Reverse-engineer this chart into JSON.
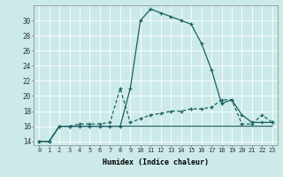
{
  "xlabel": "Humidex (Indice chaleur)",
  "background_color": "#cceaea",
  "grid_color": "#b8d8d8",
  "line_color": "#1a6060",
  "xlim": [
    -0.5,
    23.5
  ],
  "ylim": [
    13.5,
    32.0
  ],
  "yticks": [
    14,
    16,
    18,
    20,
    22,
    24,
    26,
    28,
    30
  ],
  "xticks": [
    0,
    1,
    2,
    3,
    4,
    5,
    6,
    7,
    8,
    9,
    10,
    11,
    12,
    13,
    14,
    15,
    16,
    17,
    18,
    19,
    20,
    21,
    22,
    23
  ],
  "xtick_labels": [
    "0",
    "1",
    "2",
    "3",
    "4",
    "5",
    "6",
    "7",
    "8",
    "9",
    "10",
    "11",
    "12",
    "13",
    "14",
    "15",
    "16",
    "17",
    "18",
    "19",
    "20",
    "21",
    "22",
    "23"
  ],
  "curve1_x": [
    0,
    1,
    2,
    3,
    4,
    5,
    6,
    7,
    8,
    9,
    10,
    11,
    12,
    13,
    14,
    15,
    16,
    17,
    18,
    19,
    20,
    21,
    22,
    23
  ],
  "curve1_y": [
    14,
    14,
    16,
    16,
    16,
    16,
    16,
    16,
    16,
    21,
    30,
    31.5,
    31,
    30.5,
    30,
    29.5,
    27,
    23.5,
    19,
    19.5,
    17.5,
    16.5,
    16.5,
    16.5
  ],
  "curve2_x": [
    0,
    1,
    2,
    3,
    4,
    5,
    6,
    7,
    8,
    9,
    10,
    11,
    12,
    13,
    14,
    15,
    16,
    17,
    18,
    19,
    20,
    21,
    22,
    23
  ],
  "curve2_y": [
    14,
    14,
    16,
    16,
    16.3,
    16.3,
    16.3,
    16.5,
    21,
    16.5,
    17,
    17.5,
    17.7,
    18,
    18,
    18.3,
    18.3,
    18.5,
    19.5,
    19.5,
    16.3,
    16.3,
    17.5,
    16.5
  ],
  "curve3_x": [
    0,
    1,
    2,
    3,
    4,
    5,
    6,
    7,
    8,
    9,
    10,
    11,
    12,
    13,
    14,
    15,
    16,
    17,
    18,
    19,
    20,
    21,
    22,
    23
  ],
  "curve3_y": [
    14,
    14,
    16,
    16,
    16,
    16,
    16,
    16,
    16,
    16,
    16,
    16,
    16,
    16,
    16,
    16,
    16,
    16,
    16,
    16,
    16,
    16,
    16,
    16
  ]
}
